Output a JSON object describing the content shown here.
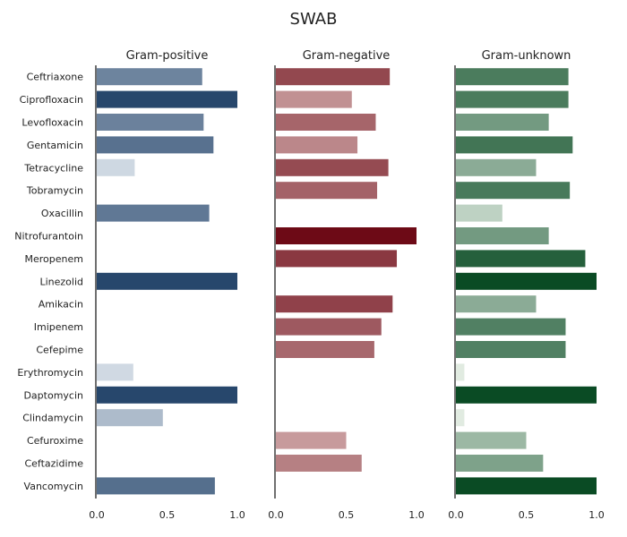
{
  "chart_data": {
    "type": "bar",
    "orientation": "horizontal",
    "title": "SWAB",
    "categories": [
      "Ceftriaxone",
      "Ciprofloxacin",
      "Levofloxacin",
      "Gentamicin",
      "Tetracycline",
      "Tobramycin",
      "Oxacillin",
      "Nitrofurantoin",
      "Meropenem",
      "Linezolid",
      "Amikacin",
      "Imipenem",
      "Cefepime",
      "Erythromycin",
      "Daptomycin",
      "Clindamycin",
      "Cefuroxime",
      "Ceftazidime",
      "Vancomycin"
    ],
    "xlim": [
      0,
      1
    ],
    "xticks": [
      "0.0",
      "0.5",
      "1.0"
    ],
    "grid": false,
    "panels": [
      {
        "name": "Gram-positive",
        "palette": [
          "#f7fbff",
          "#1e3f66"
        ],
        "values": [
          0.75,
          1.0,
          0.76,
          0.83,
          0.27,
          null,
          0.8,
          null,
          null,
          1.0,
          null,
          null,
          null,
          0.26,
          1.0,
          0.47,
          null,
          null,
          0.84
        ]
      },
      {
        "name": "Gram-negative",
        "palette": [
          "#fff5f0",
          "#67000d"
        ],
        "values": [
          0.81,
          0.54,
          0.71,
          0.58,
          0.8,
          0.72,
          null,
          1.0,
          0.86,
          null,
          0.83,
          0.75,
          0.7,
          null,
          null,
          null,
          0.5,
          0.61,
          null
        ]
      },
      {
        "name": "Gram-unknown",
        "palette": [
          "#f7fcf5",
          "#00441b"
        ],
        "values": [
          0.8,
          0.8,
          0.66,
          0.83,
          0.57,
          0.81,
          0.33,
          0.66,
          0.92,
          1.0,
          0.57,
          0.78,
          0.78,
          0.06,
          1.0,
          0.06,
          0.5,
          0.62,
          1.0
        ]
      }
    ]
  }
}
